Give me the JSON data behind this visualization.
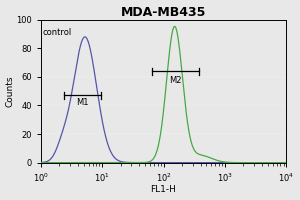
{
  "title": "MDA-MB435",
  "xlabel": "FL1-H",
  "ylabel": "Counts",
  "control_label": "control",
  "control_color": "#5555aa",
  "sample_color": "#44aa44",
  "background_color": "#e8e8e8",
  "plot_bg_color": "#e8e8e8",
  "xlim_log": [
    0,
    4
  ],
  "ylim": [
    0,
    100
  ],
  "yticks": [
    0,
    20,
    40,
    60,
    80,
    100
  ],
  "control_peak_log": 0.72,
  "control_peak_height": 88,
  "control_sigma_log": 0.19,
  "sample_peak_log": 2.18,
  "sample_peak_height": 95,
  "sample_sigma_log": 0.13,
  "m1_label": "M1",
  "m2_label": "M2",
  "m1_x1_log": 0.38,
  "m1_x2_log": 0.98,
  "m1_y": 47,
  "m2_x1_log": 1.82,
  "m2_x2_log": 2.58,
  "m2_y": 64,
  "figsize": [
    3.0,
    2.0
  ],
  "dpi": 100
}
